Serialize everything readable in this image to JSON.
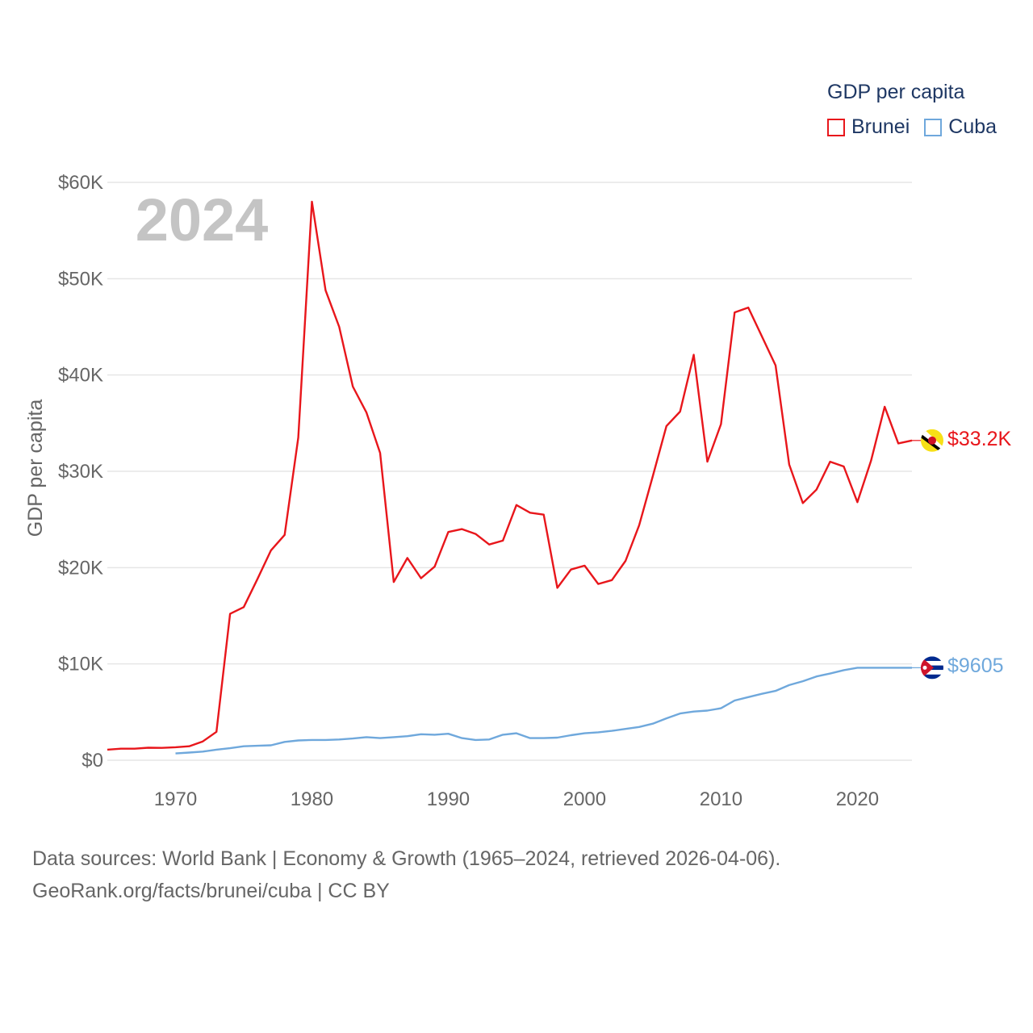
{
  "chart_data": {
    "type": "line",
    "title": "GDP per capita",
    "year_label": "2024",
    "xlabel": "",
    "ylabel": "GDP per capita",
    "xlim": [
      1965,
      2024
    ],
    "ylim": [
      0,
      60000
    ],
    "x_ticks": [
      1970,
      1980,
      1990,
      2000,
      2010,
      2020
    ],
    "y_ticks": [
      0,
      10000,
      20000,
      30000,
      40000,
      50000,
      60000
    ],
    "y_tick_labels": [
      "$0",
      "$10K",
      "$20K",
      "$30K",
      "$40K",
      "$50K",
      "$60K"
    ],
    "legend_position": "top-right",
    "series": [
      {
        "name": "Brunei",
        "color": "#e8161b",
        "end_label": "$33.2K",
        "flag_icon": "brunei-flag-icon",
        "x": [
          1965,
          1966,
          1967,
          1968,
          1969,
          1970,
          1971,
          1972,
          1973,
          1974,
          1975,
          1976,
          1977,
          1978,
          1979,
          1980,
          1981,
          1982,
          1983,
          1984,
          1985,
          1986,
          1987,
          1988,
          1989,
          1990,
          1991,
          1992,
          1993,
          1994,
          1995,
          1996,
          1997,
          1998,
          1999,
          2000,
          2001,
          2002,
          2003,
          2004,
          2005,
          2006,
          2007,
          2008,
          2009,
          2010,
          2011,
          2012,
          2013,
          2014,
          2015,
          2016,
          2017,
          2018,
          2019,
          2020,
          2021,
          2022,
          2023,
          2024
        ],
        "values": [
          1100,
          1200,
          1200,
          1300,
          1280,
          1350,
          1450,
          1950,
          2950,
          15200,
          15900,
          18800,
          21800,
          23400,
          33500,
          58000,
          48800,
          45000,
          38800,
          36100,
          31900,
          18500,
          21000,
          18900,
          20100,
          23700,
          24000,
          23500,
          22400,
          22800,
          26500,
          25700,
          25500,
          17900,
          19800,
          20200,
          18300,
          18700,
          20700,
          24400,
          29500,
          34700,
          36200,
          42100,
          31000,
          34900,
          46500,
          47000,
          44000,
          41000,
          30700,
          26700,
          28100,
          31000,
          30500,
          26800,
          31100,
          36700,
          32900,
          33200
        ]
      },
      {
        "name": "Cuba",
        "color": "#6fa8dc",
        "end_label": "$9605",
        "flag_icon": "cuba-flag-icon",
        "x": [
          1970,
          1971,
          1972,
          1973,
          1974,
          1975,
          1976,
          1977,
          1978,
          1979,
          1980,
          1981,
          1982,
          1983,
          1984,
          1985,
          1986,
          1987,
          1988,
          1989,
          1990,
          1991,
          1992,
          1993,
          1994,
          1995,
          1996,
          1997,
          1998,
          1999,
          2000,
          2001,
          2002,
          2003,
          2004,
          2005,
          2006,
          2007,
          2008,
          2009,
          2010,
          2011,
          2012,
          2013,
          2014,
          2015,
          2016,
          2017,
          2018,
          2019,
          2020,
          2021,
          2022,
          2023,
          2024
        ],
        "values": [
          700,
          800,
          900,
          1100,
          1250,
          1450,
          1500,
          1550,
          1900,
          2050,
          2100,
          2100,
          2150,
          2250,
          2400,
          2300,
          2400,
          2500,
          2700,
          2650,
          2750,
          2300,
          2100,
          2150,
          2650,
          2800,
          2300,
          2300,
          2350,
          2600,
          2800,
          2900,
          3050,
          3250,
          3450,
          3800,
          4350,
          4850,
          5050,
          5150,
          5400,
          6200,
          6550,
          6900,
          7200,
          7800,
          8200,
          8700,
          9000,
          9350,
          9605,
          9605,
          9605,
          9605,
          9605
        ]
      }
    ],
    "source_note": "Data sources: World Bank | Economy & Growth (1965–2024, retrieved 2026-04-06).",
    "credit": "GeoRank.org/facts/brunei/cuba | CC BY"
  }
}
